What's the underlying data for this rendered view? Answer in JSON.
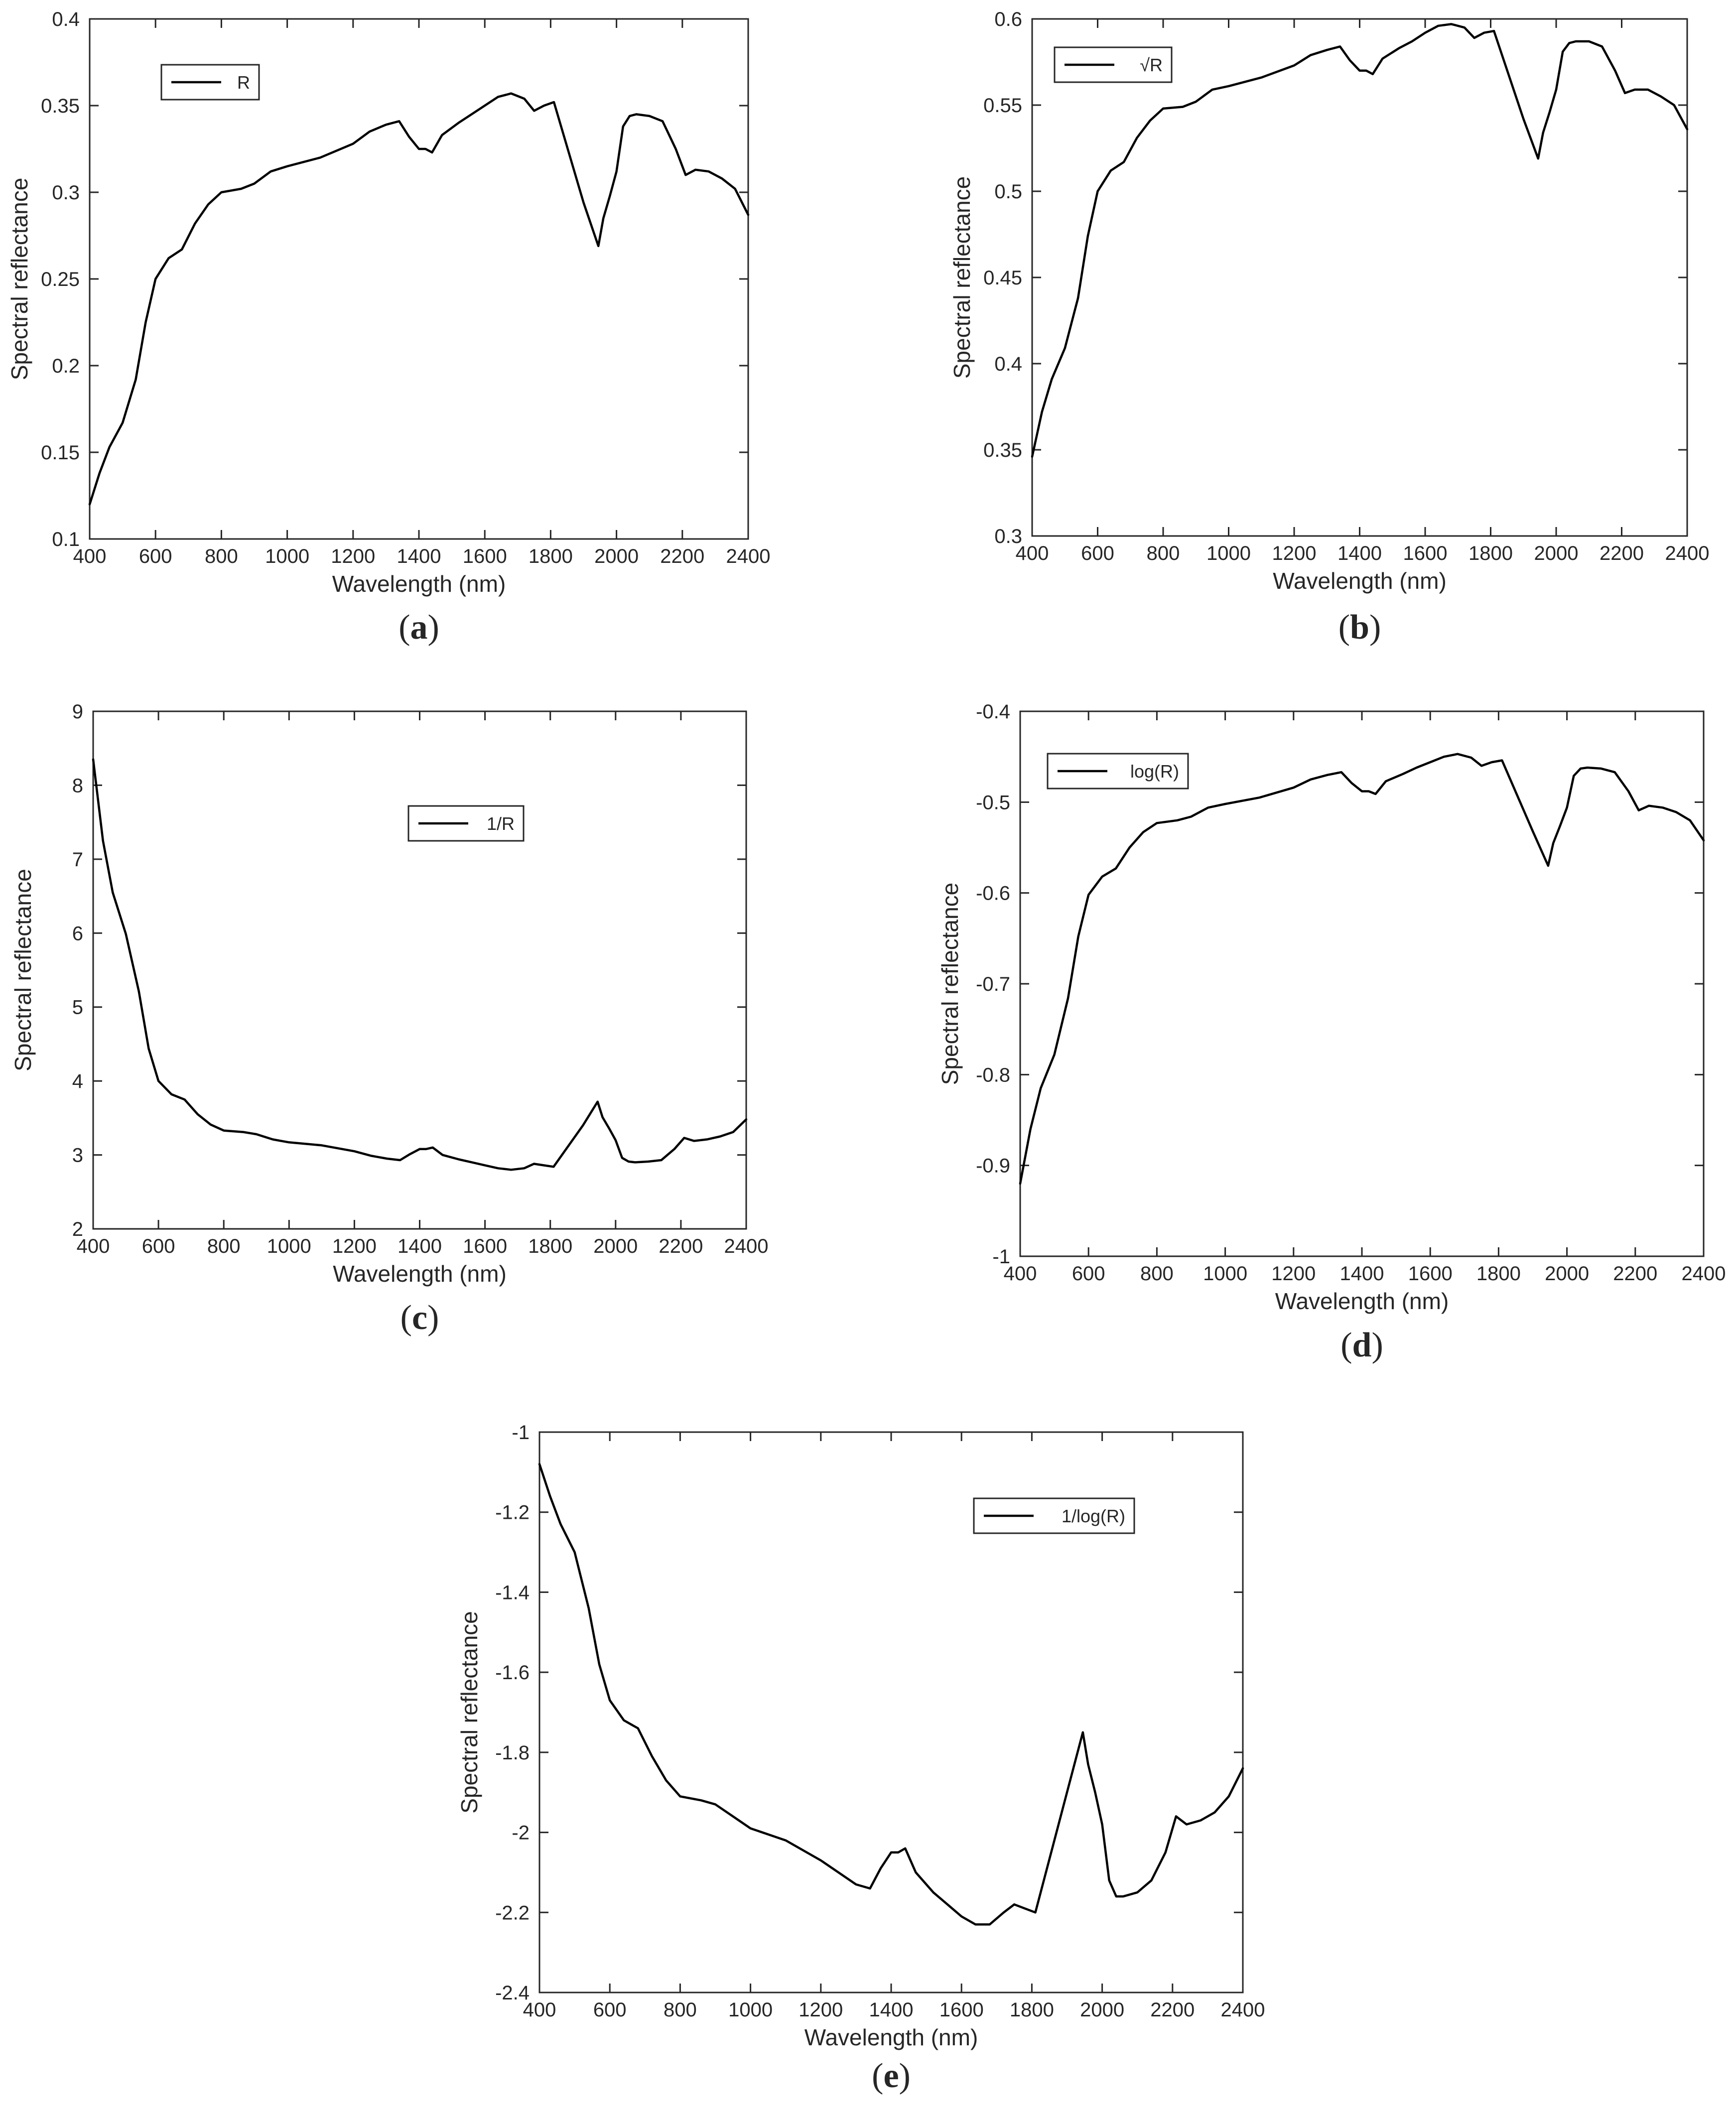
{
  "chart_data": [
    {
      "type": "line",
      "panel_label": "(a)",
      "xlabel": "Wavelength  (nm)",
      "ylabel": "Spectral reflectance",
      "xlim": [
        400,
        2400
      ],
      "ylim": [
        0.1,
        0.4
      ],
      "xticks": [
        400,
        600,
        800,
        1000,
        1200,
        1400,
        1600,
        1800,
        2000,
        2200,
        2400
      ],
      "yticks": [
        0.1,
        0.15,
        0.2,
        0.25,
        0.3,
        0.35,
        0.4
      ],
      "legend_position": "top-left",
      "series": [
        {
          "name": "R",
          "color": "#000000",
          "x": [
            400,
            430,
            460,
            500,
            540,
            570,
            600,
            640,
            680,
            720,
            760,
            800,
            860,
            900,
            950,
            1000,
            1100,
            1200,
            1250,
            1300,
            1340,
            1370,
            1400,
            1420,
            1440,
            1470,
            1520,
            1560,
            1600,
            1640,
            1680,
            1720,
            1750,
            1780,
            1810,
            1900,
            1945,
            1960,
            1980,
            2000,
            2020,
            2040,
            2060,
            2100,
            2140,
            2180,
            2210,
            2240,
            2280,
            2320,
            2360,
            2400
          ],
          "y": [
            0.12,
            0.138,
            0.153,
            0.167,
            0.192,
            0.225,
            0.25,
            0.262,
            0.267,
            0.282,
            0.293,
            0.3,
            0.302,
            0.305,
            0.312,
            0.315,
            0.32,
            0.328,
            0.335,
            0.339,
            0.341,
            0.332,
            0.325,
            0.325,
            0.323,
            0.333,
            0.34,
            0.345,
            0.35,
            0.355,
            0.357,
            0.354,
            0.347,
            0.35,
            0.352,
            0.294,
            0.269,
            0.285,
            0.298,
            0.312,
            0.338,
            0.344,
            0.345,
            0.344,
            0.341,
            0.325,
            0.31,
            0.313,
            0.312,
            0.308,
            0.302,
            0.287
          ]
        }
      ]
    },
    {
      "type": "line",
      "panel_label": "(b)",
      "xlabel": "Wavelength  (nm)",
      "ylabel": "Spectral reflectance",
      "xlim": [
        400,
        2400
      ],
      "ylim": [
        0.3,
        0.6
      ],
      "xticks": [
        400,
        600,
        800,
        1000,
        1200,
        1400,
        1600,
        1800,
        2000,
        2200,
        2400
      ],
      "yticks": [
        0.3,
        0.35,
        0.4,
        0.45,
        0.5,
        0.55,
        0.6
      ],
      "legend_position": "top-left",
      "series": [
        {
          "name": "√R",
          "color": "#000000",
          "x": [
            400,
            430,
            460,
            500,
            540,
            570,
            600,
            640,
            680,
            720,
            760,
            800,
            860,
            900,
            950,
            1000,
            1100,
            1200,
            1250,
            1300,
            1340,
            1370,
            1400,
            1420,
            1440,
            1470,
            1520,
            1560,
            1600,
            1640,
            1680,
            1720,
            1750,
            1780,
            1810,
            1900,
            1945,
            1960,
            1980,
            2000,
            2020,
            2040,
            2060,
            2100,
            2140,
            2180,
            2210,
            2240,
            2280,
            2320,
            2360,
            2400
          ],
          "y": [
            0.346,
            0.372,
            0.391,
            0.409,
            0.438,
            0.474,
            0.5,
            0.512,
            0.517,
            0.531,
            0.541,
            0.548,
            0.549,
            0.552,
            0.559,
            0.561,
            0.566,
            0.573,
            0.579,
            0.582,
            0.584,
            0.576,
            0.57,
            0.57,
            0.568,
            0.577,
            0.583,
            0.587,
            0.592,
            0.596,
            0.597,
            0.595,
            0.589,
            0.592,
            0.593,
            0.542,
            0.519,
            0.534,
            0.546,
            0.559,
            0.581,
            0.586,
            0.587,
            0.587,
            0.584,
            0.57,
            0.557,
            0.559,
            0.559,
            0.555,
            0.55,
            0.536
          ]
        }
      ]
    },
    {
      "type": "line",
      "panel_label": "(c)",
      "xlabel": "Wavelength  (nm)",
      "ylabel": "Spectral reflectance",
      "xlim": [
        400,
        2400
      ],
      "ylim": [
        2,
        9
      ],
      "xticks": [
        400,
        600,
        800,
        1000,
        1200,
        1400,
        1600,
        1800,
        2000,
        2200,
        2400
      ],
      "yticks": [
        2,
        3,
        4,
        5,
        6,
        7,
        8,
        9
      ],
      "legend_position": "top-center",
      "series": [
        {
          "name": "1/R",
          "color": "#000000",
          "x": [
            400,
            430,
            460,
            500,
            540,
            570,
            600,
            640,
            680,
            720,
            760,
            800,
            860,
            900,
            950,
            1000,
            1100,
            1200,
            1250,
            1300,
            1340,
            1370,
            1400,
            1420,
            1440,
            1470,
            1520,
            1560,
            1600,
            1640,
            1680,
            1720,
            1750,
            1780,
            1810,
            1900,
            1945,
            1960,
            1980,
            2000,
            2020,
            2040,
            2060,
            2100,
            2140,
            2180,
            2210,
            2240,
            2280,
            2320,
            2360,
            2400
          ],
          "y": [
            8.35,
            7.25,
            6.55,
            5.99,
            5.21,
            4.44,
            4.0,
            3.82,
            3.75,
            3.55,
            3.41,
            3.33,
            3.31,
            3.28,
            3.21,
            3.17,
            3.13,
            3.05,
            2.99,
            2.95,
            2.93,
            3.01,
            3.08,
            3.08,
            3.1,
            3.0,
            2.94,
            2.9,
            2.86,
            2.82,
            2.8,
            2.82,
            2.88,
            2.86,
            2.84,
            3.4,
            3.72,
            3.51,
            3.36,
            3.2,
            2.96,
            2.91,
            2.9,
            2.91,
            2.93,
            3.08,
            3.23,
            3.19,
            3.21,
            3.25,
            3.31,
            3.48
          ]
        }
      ]
    },
    {
      "type": "line",
      "panel_label": "(d)",
      "xlabel": "Wavelength  (nm)",
      "ylabel": "Spectral reflectance",
      "xlim": [
        400,
        2400
      ],
      "ylim": [
        -1,
        -0.4
      ],
      "xticks": [
        400,
        600,
        800,
        1000,
        1200,
        1400,
        1600,
        1800,
        2000,
        2200,
        2400
      ],
      "yticks": [
        -1,
        -0.9,
        -0.8,
        -0.7,
        -0.6,
        -0.5,
        -0.4
      ],
      "legend_position": "top-left",
      "series": [
        {
          "name": "log(R)",
          "color": "#000000",
          "x": [
            400,
            430,
            460,
            500,
            540,
            570,
            600,
            640,
            680,
            720,
            760,
            800,
            860,
            900,
            950,
            1000,
            1100,
            1200,
            1250,
            1300,
            1340,
            1370,
            1400,
            1420,
            1440,
            1470,
            1520,
            1560,
            1600,
            1640,
            1680,
            1720,
            1750,
            1780,
            1810,
            1900,
            1945,
            1960,
            1980,
            2000,
            2020,
            2040,
            2060,
            2100,
            2140,
            2180,
            2210,
            2240,
            2280,
            2320,
            2360,
            2400
          ],
          "y": [
            -0.92,
            -0.86,
            -0.815,
            -0.778,
            -0.716,
            -0.648,
            -0.602,
            -0.582,
            -0.573,
            -0.55,
            -0.533,
            -0.523,
            -0.52,
            -0.516,
            -0.506,
            -0.502,
            -0.495,
            -0.484,
            -0.475,
            -0.47,
            -0.467,
            -0.479,
            -0.488,
            -0.488,
            -0.491,
            -0.477,
            -0.469,
            -0.462,
            -0.456,
            -0.45,
            -0.447,
            -0.451,
            -0.46,
            -0.456,
            -0.454,
            -0.532,
            -0.57,
            -0.545,
            -0.526,
            -0.506,
            -0.471,
            -0.463,
            -0.462,
            -0.463,
            -0.467,
            -0.488,
            -0.509,
            -0.504,
            -0.506,
            -0.511,
            -0.52,
            -0.542
          ]
        }
      ]
    },
    {
      "type": "line",
      "panel_label": "(e)",
      "xlabel": "Wavelength  (nm)",
      "ylabel": "Spectral reflectance",
      "xlim": [
        400,
        2400
      ],
      "ylim": [
        -2.4,
        -1
      ],
      "xticks": [
        400,
        600,
        800,
        1000,
        1200,
        1400,
        1600,
        1800,
        2000,
        2200,
        2400
      ],
      "yticks": [
        -2.4,
        -2.2,
        -2,
        -1.8,
        -1.6,
        -1.4,
        -1.2,
        -1
      ],
      "legend_position": "top-right",
      "series": [
        {
          "name": "1/log(R)",
          "color": "#000000",
          "x": [
            400,
            430,
            460,
            500,
            540,
            570,
            600,
            640,
            680,
            720,
            760,
            800,
            860,
            900,
            950,
            1000,
            1100,
            1200,
            1250,
            1300,
            1340,
            1370,
            1400,
            1420,
            1440,
            1470,
            1520,
            1560,
            1600,
            1640,
            1680,
            1720,
            1750,
            1780,
            1810,
            1900,
            1945,
            1960,
            1980,
            2000,
            2020,
            2040,
            2060,
            2100,
            2140,
            2180,
            2210,
            2240,
            2280,
            2320,
            2360,
            2400
          ],
          "y": [
            -1.08,
            -1.16,
            -1.23,
            -1.3,
            -1.44,
            -1.58,
            -1.67,
            -1.72,
            -1.74,
            -1.81,
            -1.87,
            -1.91,
            -1.92,
            -1.93,
            -1.96,
            -1.99,
            -2.02,
            -2.07,
            -2.1,
            -2.13,
            -2.14,
            -2.09,
            -2.05,
            -2.05,
            -2.04,
            -2.1,
            -2.15,
            -2.18,
            -2.21,
            -2.23,
            -2.23,
            -2.2,
            -2.18,
            -2.19,
            -2.2,
            -1.9,
            -1.75,
            -1.83,
            -1.9,
            -1.98,
            -2.12,
            -2.16,
            -2.16,
            -2.15,
            -2.12,
            -2.05,
            -1.96,
            -1.98,
            -1.97,
            -1.95,
            -1.91,
            -1.84
          ]
        }
      ]
    }
  ]
}
